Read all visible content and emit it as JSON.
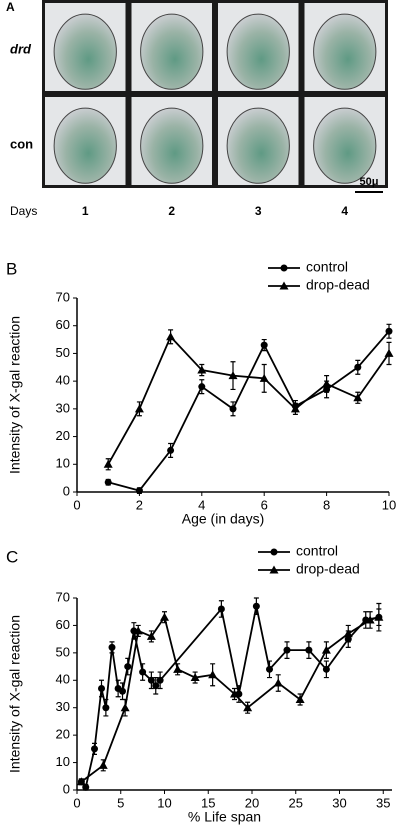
{
  "panel_a": {
    "label": "A",
    "rows": [
      "drd",
      "con"
    ],
    "days_label": "Days",
    "days": [
      "1",
      "2",
      "3",
      "4"
    ],
    "scale_bar": "50μ"
  },
  "chart_data": [
    {
      "type": "line",
      "panel_label": "B",
      "ylabel": "Intensity of X-gal reaction",
      "xlabel": "Age (in days)",
      "xlim": [
        0,
        10
      ],
      "ylim": [
        0,
        70
      ],
      "xticks": [
        0,
        2,
        4,
        6,
        8,
        10
      ],
      "yticks": [
        0,
        10,
        20,
        30,
        40,
        50,
        60,
        70
      ],
      "legend": "upper right",
      "series": [
        {
          "name": "control",
          "marker": "circle",
          "color": "#000000",
          "x": [
            1,
            2,
            3,
            4,
            5,
            6,
            7,
            8,
            9,
            10
          ],
          "values": [
            3.5,
            0.5,
            15,
            38,
            30,
            53,
            31,
            37,
            45,
            58
          ],
          "errors": [
            1,
            1,
            2.5,
            2.5,
            2.5,
            2,
            2,
            3,
            2.5,
            2.5
          ]
        },
        {
          "name": "drop-dead",
          "marker": "triangle",
          "color": "#000000",
          "x": [
            1,
            2,
            3,
            4,
            5,
            6,
            7,
            8,
            9,
            10
          ],
          "values": [
            10,
            30,
            56,
            44,
            42,
            41,
            30,
            39,
            34,
            50
          ],
          "errors": [
            2,
            2.5,
            2.5,
            2,
            5,
            5,
            2,
            3,
            2,
            4
          ]
        }
      ]
    },
    {
      "type": "line",
      "panel_label": "C",
      "ylabel": "Intensity of X-gal reaction",
      "xlabel": "% Life span",
      "xlim": [
        0,
        36
      ],
      "ylim": [
        0,
        70
      ],
      "xticks": [
        0,
        5,
        10,
        15,
        20,
        25,
        30,
        35
      ],
      "yticks": [
        0,
        10,
        20,
        30,
        40,
        50,
        60,
        70
      ],
      "legend": "upper right",
      "series": [
        {
          "name": "control",
          "marker": "circle",
          "color": "#000000",
          "x": [
            0.5,
            1,
            2,
            2.8,
            3.3,
            4,
            4.7,
            5.2,
            5.8,
            6.5,
            7.5,
            8.5,
            9,
            9.5,
            16.5,
            18.5,
            20.5,
            22,
            24,
            26.5,
            28.5,
            31,
            33,
            34.5
          ],
          "values": [
            3,
            1,
            15,
            37,
            30,
            52,
            37,
            36,
            45,
            58,
            43,
            40,
            38,
            40,
            66,
            35,
            67,
            44,
            51,
            51,
            44,
            55,
            62,
            63
          ],
          "errors": [
            1,
            1,
            2,
            3,
            3,
            2,
            3,
            3,
            3,
            3,
            3,
            3,
            3,
            3,
            3,
            3,
            3,
            3,
            3,
            3,
            3,
            3,
            3,
            3
          ]
        },
        {
          "name": "drop-dead",
          "marker": "triangle",
          "color": "#000000",
          "x": [
            0.5,
            3,
            5.5,
            7,
            8.5,
            10,
            11.5,
            13.5,
            15.5,
            18,
            19.5,
            23,
            25.5,
            28.5,
            31,
            33.5,
            34.5
          ],
          "values": [
            3,
            9,
            30,
            58,
            56,
            63,
            44,
            41,
            42,
            35,
            30,
            39,
            33,
            51,
            57,
            62,
            63
          ],
          "errors": [
            1,
            2,
            3,
            2,
            2,
            2,
            2,
            2,
            4,
            2,
            2,
            3,
            2,
            3,
            3,
            3,
            5
          ]
        }
      ]
    }
  ]
}
